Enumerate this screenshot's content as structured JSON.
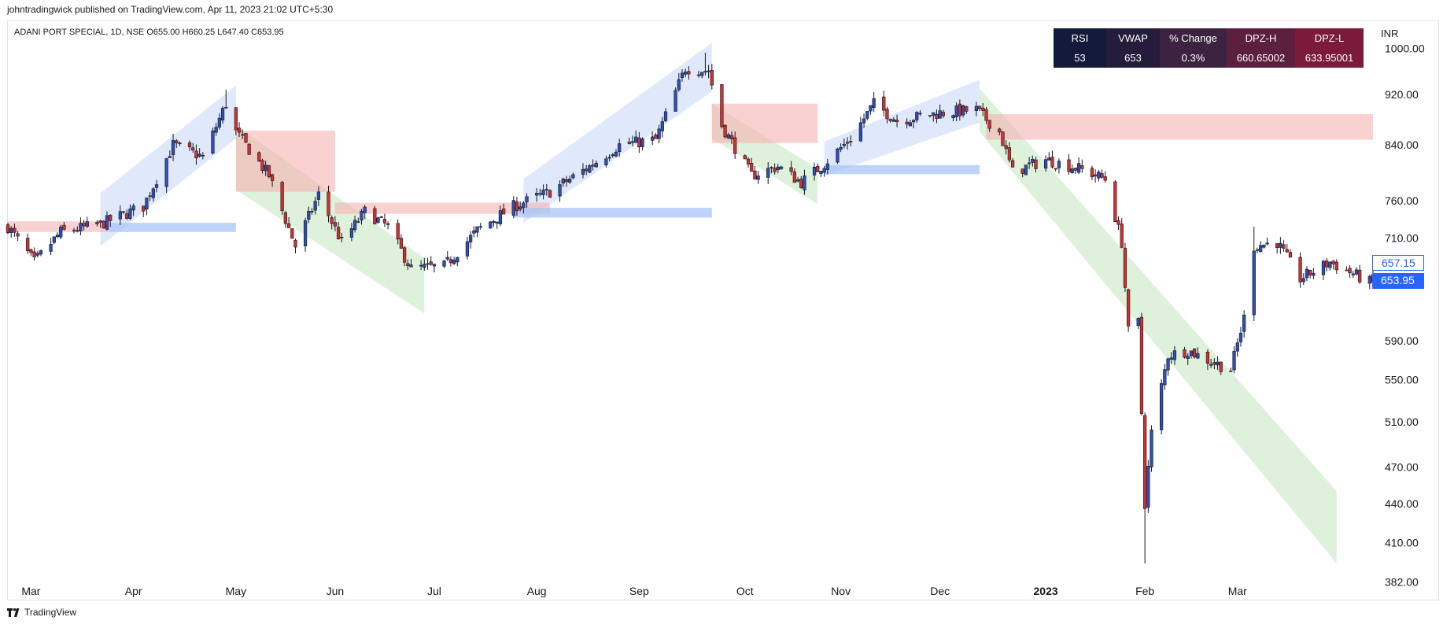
{
  "header": {
    "published_line": "johntradingwick published on TradingView.com, Apr 11, 2023 21:02 UTC+5:30"
  },
  "symbol_info": {
    "text": "ADANI PORT SPECIAL, 1D, NSE  O655.00  H660.25  L647.40  C653.95"
  },
  "currency": "INR",
  "indicator_table": {
    "headers": [
      "RSI",
      "VWAP",
      "% Change",
      "DPZ-H",
      "DPZ-L"
    ],
    "values": [
      "53",
      "653",
      "0.3%",
      "660.65002",
      "633.95001"
    ]
  },
  "price_tags": {
    "upper": "657.15",
    "last": "653.95"
  },
  "footer": {
    "brand": "TradingView",
    "logo_icon": "tradingview-logo-icon"
  },
  "colors": {
    "up": "#2e4fb4",
    "down": "#d32f2f",
    "blue_zone": "#dbe7fb",
    "green_zone": "#d9efd7",
    "red_zone": "#f7b3b3",
    "blue_band": "#a8c4f5",
    "accent": "#2962ff"
  },
  "chart_data": {
    "type": "candlestick",
    "scale": "log",
    "ylim": [
      370,
      1050
    ],
    "yticks": [
      382,
      410,
      440,
      470,
      510,
      550,
      590,
      710,
      760,
      840,
      920,
      1000
    ],
    "ytick_labels": [
      "382.00",
      "410.00",
      "440.00",
      "470.00",
      "510.00",
      "550.00",
      "590.00",
      "710.00",
      "760.00",
      "840.00",
      "920.00",
      "1000.00"
    ],
    "xticks": [
      {
        "label": "Mar",
        "date": "2022-03-01",
        "year": false
      },
      {
        "label": "Apr",
        "date": "2022-04-01",
        "year": false
      },
      {
        "label": "May",
        "date": "2022-05-02",
        "year": false
      },
      {
        "label": "Jun",
        "date": "2022-06-01",
        "year": false
      },
      {
        "label": "Jul",
        "date": "2022-07-01",
        "year": false
      },
      {
        "label": "Aug",
        "date": "2022-08-01",
        "year": false
      },
      {
        "label": "Sep",
        "date": "2022-09-01",
        "year": false
      },
      {
        "label": "Oct",
        "date": "2022-10-03",
        "year": false
      },
      {
        "label": "Nov",
        "date": "2022-11-01",
        "year": false
      },
      {
        "label": "Dec",
        "date": "2022-12-01",
        "year": false
      },
      {
        "label": "2023",
        "date": "2023-01-02",
        "year": true
      },
      {
        "label": "Feb",
        "date": "2023-02-01",
        "year": false
      },
      {
        "label": "Mar",
        "date": "2023-03-01",
        "year": false
      }
    ],
    "date_range": [
      "2022-02-22",
      "2023-04-11"
    ],
    "trend_zones": [
      {
        "kind": "up",
        "start": "2022-03-22",
        "end": "2022-05-02",
        "low_start": 700,
        "high_start": 770,
        "low_end": 850,
        "high_end": 935
      },
      {
        "kind": "down",
        "start": "2022-05-02",
        "end": "2022-06-28",
        "low_start": 775,
        "high_start": 870,
        "low_end": 620,
        "high_end": 685
      },
      {
        "kind": "up",
        "start": "2022-07-28",
        "end": "2022-09-23",
        "low_start": 730,
        "high_start": 790,
        "low_end": 925,
        "high_end": 1010
      },
      {
        "kind": "down",
        "start": "2022-09-23",
        "end": "2022-10-25",
        "low_start": 850,
        "high_start": 905,
        "low_end": 755,
        "high_end": 805
      },
      {
        "kind": "up",
        "start": "2022-10-27",
        "end": "2022-12-13",
        "low_start": 795,
        "high_start": 845,
        "low_end": 875,
        "high_end": 945
      },
      {
        "kind": "down",
        "start": "2022-12-13",
        "end": "2023-03-31",
        "low_start": 860,
        "high_start": 930,
        "low_end": 395,
        "high_end": 450
      }
    ],
    "supply_zones": [
      {
        "start": "2022-05-02",
        "end": "2022-06-01",
        "low": 772,
        "high": 862
      },
      {
        "start": "2022-06-01",
        "end": "2022-08-05",
        "low": 742,
        "high": 757
      },
      {
        "start": "2022-09-23",
        "end": "2022-10-25",
        "low": 843,
        "high": 905
      },
      {
        "start": "2022-12-15",
        "end": "2023-04-11",
        "low": 848,
        "high": 888
      },
      {
        "start": "2022-02-22",
        "end": "2022-03-25",
        "low": 718,
        "high": 732
      }
    ],
    "demand_bands": [
      {
        "start": "2022-03-25",
        "end": "2022-05-02",
        "low": 718,
        "high": 730
      },
      {
        "start": "2022-07-25",
        "end": "2022-09-23",
        "low": 737,
        "high": 750
      },
      {
        "start": "2022-10-27",
        "end": "2022-12-13",
        "low": 797,
        "high": 810
      }
    ],
    "anchors": [
      [
        "2022-02-22",
        725
      ],
      [
        "2022-03-02",
        680
      ],
      [
        "2022-03-10",
        718
      ],
      [
        "2022-03-22",
        728
      ],
      [
        "2022-04-04",
        752
      ],
      [
        "2022-04-13",
        840
      ],
      [
        "2022-04-22",
        822
      ],
      [
        "2022-04-29",
        905
      ],
      [
        "2022-05-02",
        860
      ],
      [
        "2022-05-12",
        795
      ],
      [
        "2022-05-20",
        700
      ],
      [
        "2022-05-27",
        768
      ],
      [
        "2022-06-03",
        705
      ],
      [
        "2022-06-10",
        745
      ],
      [
        "2022-06-17",
        725
      ],
      [
        "2022-06-24",
        672
      ],
      [
        "2022-07-04",
        675
      ],
      [
        "2022-07-14",
        720
      ],
      [
        "2022-07-25",
        752
      ],
      [
        "2022-08-05",
        772
      ],
      [
        "2022-08-17",
        808
      ],
      [
        "2022-08-26",
        840
      ],
      [
        "2022-09-06",
        848
      ],
      [
        "2022-09-15",
        965
      ],
      [
        "2022-09-22",
        960
      ],
      [
        "2022-09-26",
        870
      ],
      [
        "2022-10-05",
        795
      ],
      [
        "2022-10-13",
        808
      ],
      [
        "2022-10-20",
        785
      ],
      [
        "2022-10-27",
        812
      ],
      [
        "2022-11-04",
        850
      ],
      [
        "2022-11-11",
        905
      ],
      [
        "2022-11-18",
        878
      ],
      [
        "2022-12-01",
        890
      ],
      [
        "2022-12-12",
        895
      ],
      [
        "2022-12-19",
        860
      ],
      [
        "2022-12-23",
        800
      ],
      [
        "2023-01-02",
        818
      ],
      [
        "2023-01-12",
        805
      ],
      [
        "2023-01-20",
        790
      ],
      [
        "2023-01-25",
        705
      ],
      [
        "2023-01-27",
        600
      ],
      [
        "2023-01-30",
        610
      ],
      [
        "2023-02-01",
        440
      ],
      [
        "2023-02-03",
        500
      ],
      [
        "2023-02-08",
        575
      ],
      [
        "2023-02-14",
        580
      ],
      [
        "2023-02-20",
        570
      ],
      [
        "2023-02-27",
        560
      ],
      [
        "2023-03-03",
        615
      ],
      [
        "2023-03-06",
        700
      ],
      [
        "2023-03-13",
        705
      ],
      [
        "2023-03-20",
        660
      ],
      [
        "2023-03-29",
        680
      ],
      [
        "2023-04-11",
        654
      ]
    ],
    "extremes": [
      {
        "date": "2022-04-29",
        "high": 928
      },
      {
        "date": "2022-09-21",
        "high": 992
      },
      {
        "date": "2023-02-01",
        "low": 395
      },
      {
        "date": "2023-03-06",
        "high": 725
      }
    ]
  }
}
